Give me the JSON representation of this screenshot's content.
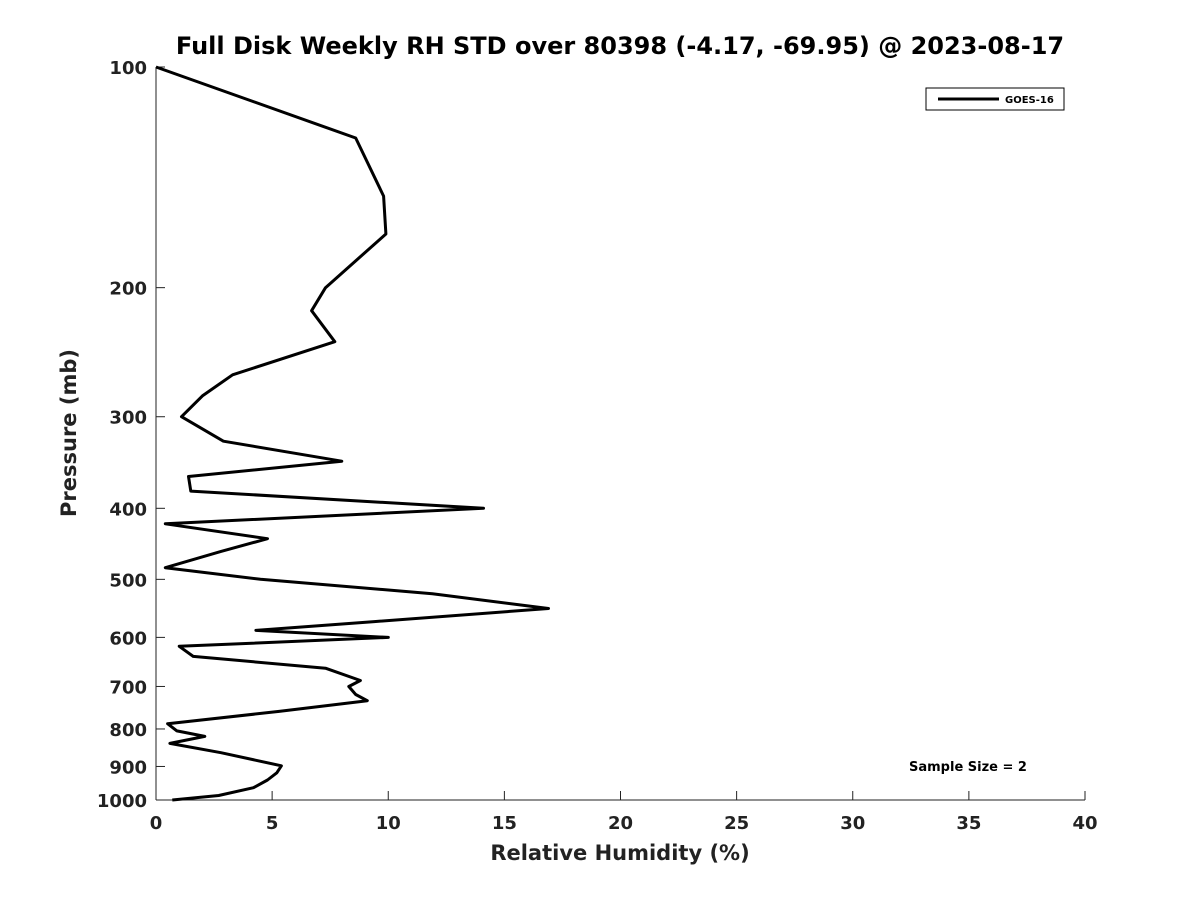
{
  "chart_data": {
    "type": "line",
    "title": "Full Disk Weekly RH STD over 80398 (-4.17, -69.95) @ 2023-08-17",
    "xlabel": "Relative Humidity (%)",
    "ylabel": "Pressure (mb)",
    "xlim": [
      0,
      40
    ],
    "ylim": [
      100,
      1000
    ],
    "y_scale": "log",
    "y_inverted": true,
    "x_ticks": [
      "0",
      "5",
      "10",
      "15",
      "20",
      "25",
      "30",
      "35",
      "40"
    ],
    "y_ticks": [
      "100",
      "200",
      "300",
      "400",
      "500",
      "600",
      "700",
      "800",
      "900",
      "1000"
    ],
    "grid": false,
    "legend": {
      "position": "top-right",
      "entries": [
        "GOES-16"
      ]
    },
    "annotation": "Sample Size = 2",
    "series": [
      {
        "name": "GOES-16",
        "color": "#000000",
        "points": [
          [
            0.0,
            100
          ],
          [
            8.6,
            125
          ],
          [
            9.8,
            150
          ],
          [
            9.9,
            169
          ],
          [
            7.3,
            200
          ],
          [
            6.7,
            215
          ],
          [
            7.7,
            237
          ],
          [
            3.3,
            263
          ],
          [
            2.0,
            281
          ],
          [
            1.1,
            300
          ],
          [
            2.9,
            324
          ],
          [
            8.0,
            345
          ],
          [
            1.4,
            362
          ],
          [
            1.5,
            379
          ],
          [
            14.1,
            400
          ],
          [
            0.4,
            420
          ],
          [
            4.8,
            440
          ],
          [
            2.8,
            458
          ],
          [
            0.4,
            482
          ],
          [
            4.5,
            500
          ],
          [
            11.9,
            523
          ],
          [
            16.9,
            548
          ],
          [
            9.4,
            571
          ],
          [
            4.3,
            587
          ],
          [
            10.0,
            600
          ],
          [
            1.0,
            617
          ],
          [
            1.6,
            637
          ],
          [
            7.3,
            661
          ],
          [
            8.8,
            687
          ],
          [
            8.3,
            700
          ],
          [
            8.6,
            718
          ],
          [
            9.1,
            732
          ],
          [
            5.3,
            757
          ],
          [
            0.5,
            787
          ],
          [
            0.9,
            805
          ],
          [
            2.1,
            819
          ],
          [
            0.6,
            837
          ],
          [
            2.8,
            862
          ],
          [
            5.4,
            898
          ],
          [
            5.2,
            918
          ],
          [
            4.8,
            939
          ],
          [
            4.2,
            962
          ],
          [
            2.7,
            986
          ],
          [
            0.7,
            1000
          ]
        ]
      }
    ]
  }
}
